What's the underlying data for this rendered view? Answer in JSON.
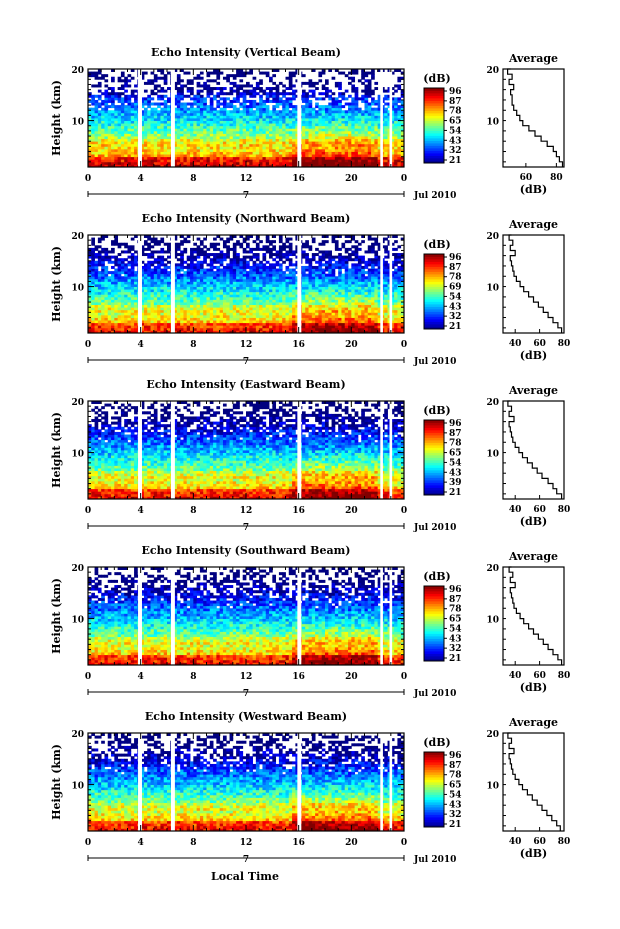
{
  "figure": {
    "xlabel": "Local Time",
    "date_main": "7",
    "date_label": "Jul 2010"
  },
  "chart_data": [
    {
      "type": "heatmap",
      "title": "Echo Intensity (Vertical Beam)",
      "ylabel": "Height (km)",
      "xlim": [
        0,
        24
      ],
      "ylim": [
        1,
        20
      ],
      "x_ticks": [
        "0",
        "4",
        "8",
        "12",
        "16",
        "20",
        "0"
      ],
      "y_ticks": [
        "10",
        "20"
      ],
      "colorbar_label": "(dB)",
      "colorbar_ticks": [
        "96",
        "87",
        "78",
        "65",
        "54",
        "43",
        "32",
        "21"
      ],
      "profile": {
        "title": "Average",
        "xlabel": "(dB)",
        "xlim": [
          45,
          85
        ],
        "x_ticks": [
          "60",
          "80"
        ],
        "y_ticks": [
          "10",
          "20"
        ],
        "height": [
          1,
          2,
          3,
          4,
          5,
          6,
          7,
          8,
          9,
          10,
          11,
          12,
          13,
          14,
          15,
          16,
          17,
          18,
          19,
          20
        ],
        "db": [
          84,
          82,
          80,
          78,
          74,
          70,
          66,
          62,
          58,
          56,
          54,
          52,
          51,
          51,
          50,
          52,
          49,
          51,
          48,
          50
        ]
      }
    },
    {
      "type": "heatmap",
      "title": "Echo Intensity (Northward Beam)",
      "ylabel": "Height (km)",
      "xlim": [
        0,
        24
      ],
      "ylim": [
        1,
        20
      ],
      "x_ticks": [
        "0",
        "4",
        "8",
        "12",
        "16",
        "20",
        "0"
      ],
      "y_ticks": [
        "10",
        "20"
      ],
      "colorbar_label": "(dB)",
      "colorbar_ticks": [
        "96",
        "87",
        "78",
        "69",
        "54",
        "43",
        "32",
        "21"
      ],
      "profile": {
        "title": "Average",
        "xlabel": "(dB)",
        "xlim": [
          30,
          80
        ],
        "x_ticks": [
          "40",
          "60",
          "80"
        ],
        "y_ticks": [
          "10",
          "20"
        ],
        "height": [
          1,
          2,
          3,
          4,
          5,
          6,
          7,
          8,
          9,
          10,
          11,
          12,
          13,
          14,
          15,
          16,
          17,
          18,
          19,
          20
        ],
        "db": [
          78,
          75,
          71,
          67,
          63,
          59,
          55,
          51,
          47,
          44,
          41,
          39,
          38,
          37,
          36,
          40,
          36,
          38,
          35,
          37
        ]
      }
    },
    {
      "type": "heatmap",
      "title": "Echo Intensity (Eastward Beam)",
      "ylabel": "Height (km)",
      "xlim": [
        0,
        24
      ],
      "ylim": [
        1,
        20
      ],
      "x_ticks": [
        "0",
        "4",
        "8",
        "12",
        "16",
        "20",
        "0"
      ],
      "y_ticks": [
        "10",
        "20"
      ],
      "colorbar_label": "(dB)",
      "colorbar_ticks": [
        "96",
        "87",
        "78",
        "65",
        "54",
        "43",
        "39",
        "21"
      ],
      "profile": {
        "title": "Average",
        "xlabel": "(dB)",
        "xlim": [
          30,
          80
        ],
        "x_ticks": [
          "40",
          "60",
          "80"
        ],
        "y_ticks": [
          "10",
          "20"
        ],
        "height": [
          1,
          2,
          3,
          4,
          5,
          6,
          7,
          8,
          9,
          10,
          11,
          12,
          13,
          14,
          15,
          16,
          17,
          18,
          19,
          20
        ],
        "db": [
          78,
          74,
          71,
          67,
          62,
          58,
          54,
          50,
          46,
          43,
          40,
          38,
          37,
          36,
          35,
          39,
          35,
          37,
          34,
          36
        ]
      }
    },
    {
      "type": "heatmap",
      "title": "Echo Intensity (Southward Beam)",
      "ylabel": "Height (km)",
      "xlim": [
        0,
        24
      ],
      "ylim": [
        1,
        20
      ],
      "x_ticks": [
        "0",
        "4",
        "8",
        "12",
        "16",
        "20",
        "0"
      ],
      "y_ticks": [
        "10",
        "20"
      ],
      "colorbar_label": "(dB)",
      "colorbar_ticks": [
        "96",
        "87",
        "78",
        "65",
        "54",
        "43",
        "32",
        "21"
      ],
      "profile": {
        "title": "Average",
        "xlabel": "(dB)",
        "xlim": [
          30,
          80
        ],
        "x_ticks": [
          "40",
          "60",
          "80"
        ],
        "y_ticks": [
          "10",
          "20"
        ],
        "height": [
          1,
          2,
          3,
          4,
          5,
          6,
          7,
          8,
          9,
          10,
          11,
          12,
          13,
          14,
          15,
          16,
          17,
          18,
          19,
          20
        ],
        "db": [
          78,
          75,
          71,
          67,
          63,
          59,
          55,
          51,
          47,
          44,
          41,
          39,
          38,
          37,
          36,
          40,
          36,
          38,
          35,
          37
        ]
      }
    },
    {
      "type": "heatmap",
      "title": "Echo Intensity (Westward Beam)",
      "ylabel": "Height (km)",
      "xlim": [
        0,
        24
      ],
      "ylim": [
        1,
        20
      ],
      "x_ticks": [
        "0",
        "4",
        "8",
        "12",
        "16",
        "20",
        "0"
      ],
      "y_ticks": [
        "10",
        "20"
      ],
      "colorbar_label": "(dB)",
      "colorbar_ticks": [
        "96",
        "87",
        "78",
        "65",
        "54",
        "43",
        "32",
        "21"
      ],
      "profile": {
        "title": "Average",
        "xlabel": "(dB)",
        "xlim": [
          30,
          80
        ],
        "x_ticks": [
          "40",
          "60",
          "80"
        ],
        "y_ticks": [
          "10",
          "20"
        ],
        "height": [
          1,
          2,
          3,
          4,
          5,
          6,
          7,
          8,
          9,
          10,
          11,
          12,
          13,
          14,
          15,
          16,
          17,
          18,
          19,
          20
        ],
        "db": [
          77,
          74,
          70,
          66,
          62,
          58,
          54,
          50,
          46,
          43,
          40,
          38,
          37,
          36,
          35,
          39,
          35,
          37,
          34,
          36
        ]
      }
    }
  ]
}
